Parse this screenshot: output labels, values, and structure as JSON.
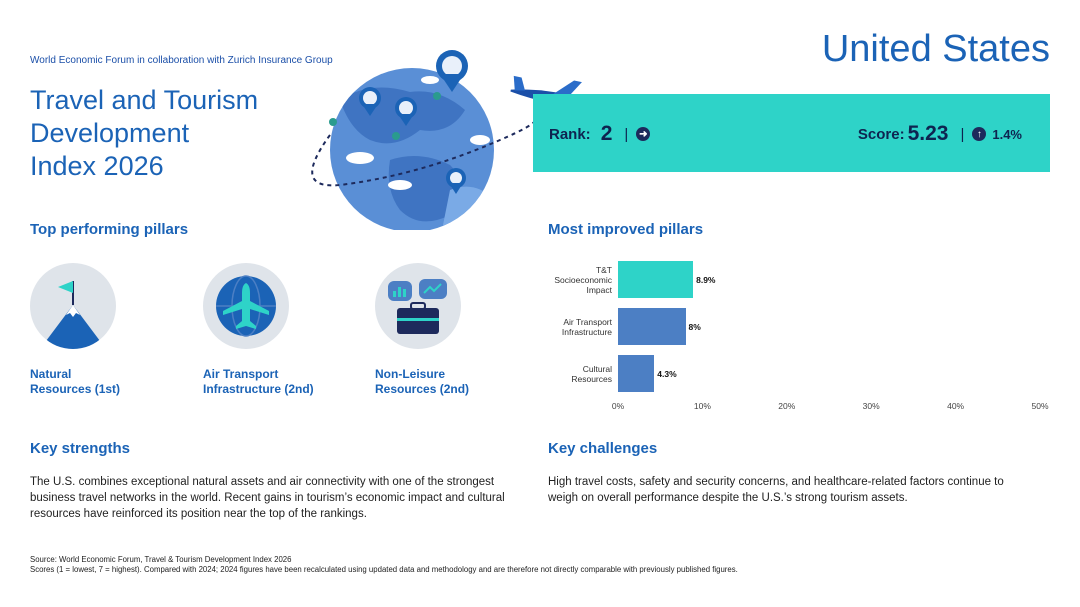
{
  "header": {
    "collab": "World Economic Forum in collaboration with Zurich Insurance Group",
    "title_line1": "Travel and Tourism",
    "title_line2": "Development",
    "title_line3": "Index 2026",
    "country": "United States"
  },
  "banner": {
    "rank_label": "Rank:",
    "rank_value": "2",
    "rank_trend_icon": "arrow-right-icon",
    "score_label": "Score:",
    "score_value": "5.23",
    "score_trend_icon": "arrow-up-icon",
    "score_change": "1.4%",
    "separator": "|",
    "color": "#2ed3c8"
  },
  "top_pillars": {
    "heading": "Top performing pillars",
    "items": [
      {
        "line1": "Natural",
        "line2": "Resources (1st)",
        "icon": "mountain-flag-icon"
      },
      {
        "line1": "Air Transport",
        "line2": "Infrastructure (2nd)",
        "icon": "airplane-icon"
      },
      {
        "line1": "Non-Leisure",
        "line2": "Resources (2nd)",
        "icon": "briefcase-icon"
      }
    ]
  },
  "improved": {
    "heading": "Most improved pillars"
  },
  "chart_data": {
    "type": "bar",
    "orientation": "horizontal",
    "categories": [
      [
        "T&T",
        "Socioeconomic",
        "Impact"
      ],
      [
        "Air Transport",
        "Infrastructure"
      ],
      [
        "Cultural",
        "Resources"
      ]
    ],
    "values": [
      8.9,
      8,
      4.3
    ],
    "value_labels": [
      "8.9%",
      "8%",
      "4.3%"
    ],
    "colors": [
      "#2ed3c8",
      "#4c7fc4",
      "#4c7fc4"
    ],
    "xlim": [
      0,
      50
    ],
    "xticks": [
      "0%",
      "10%",
      "20%",
      "30%",
      "40%",
      "50%"
    ],
    "grid": false
  },
  "strengths": {
    "heading": "Key strengths",
    "line1": "The U.S. combines exceptional natural assets and air connectivity with one of the strongest",
    "line2": "business travel networks in the world. Recent gains in tourism’s economic impact and cultural",
    "line3": "resources have reinforced its position near the top of the rankings."
  },
  "challenges": {
    "heading": "Key challenges",
    "line1": "High travel costs, safety and security concerns, and healthcare-related factors continue to",
    "line2": "weigh on overall performance despite the U.S.’s strong tourism assets."
  },
  "footer": {
    "source": "Source: World Economic Forum, Travel & Tourism Development Index 2026",
    "note": "Scores (1 = lowest, 7 = highest). Compared with 2024; 2024 figures have been recalculated using updated data and methodology and are therefore not directly comparable with previously published figures."
  }
}
